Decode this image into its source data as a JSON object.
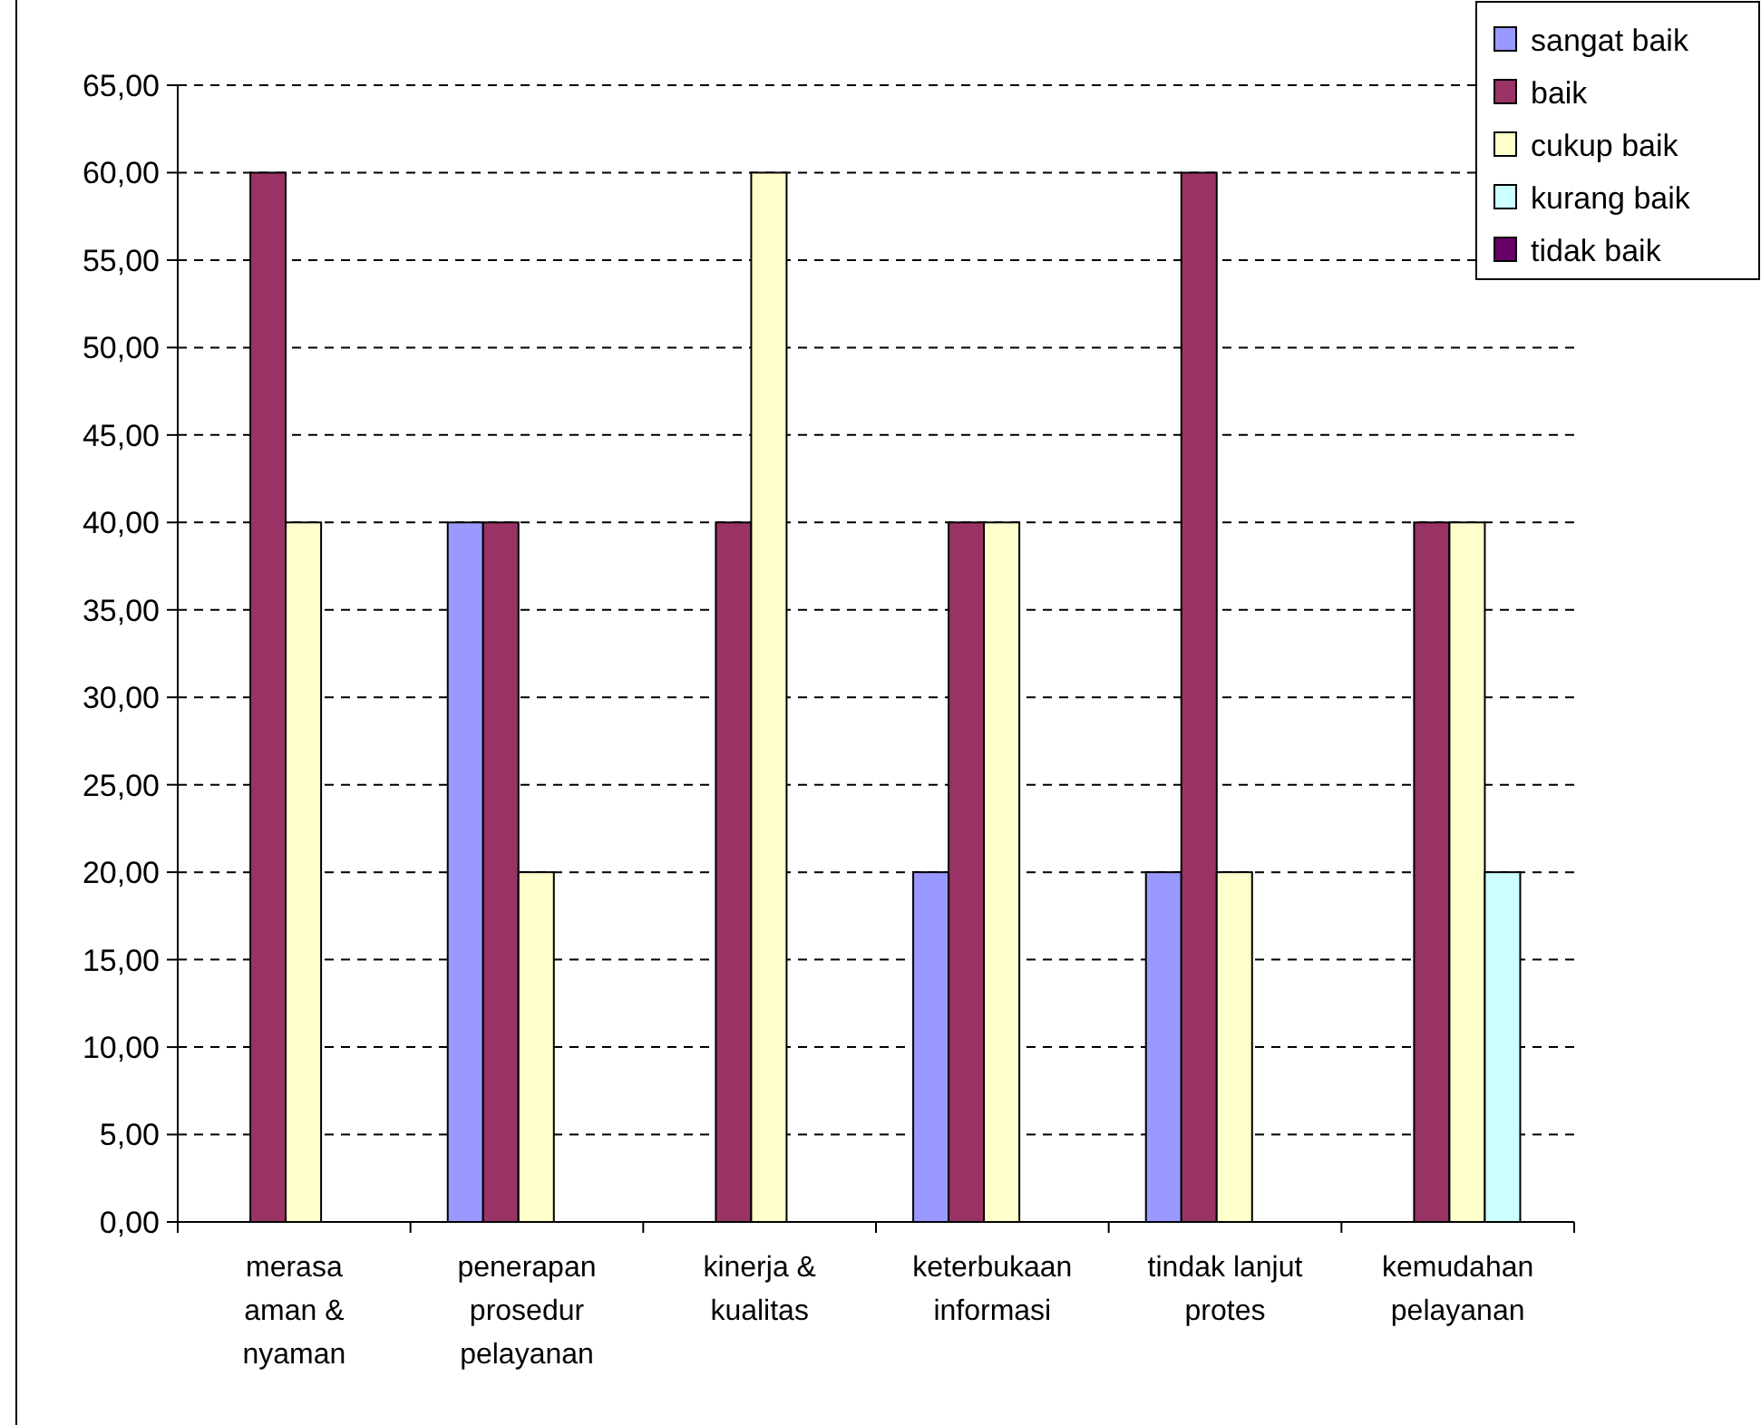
{
  "chart_data": {
    "type": "bar",
    "categories": [
      "merasa\naman &\nnyaman",
      "penerapan\nprosedur\npelayanan",
      "kinerja &\nkualitas",
      "keterbukaan\ninformasi",
      "tindak lanjut\nprotes",
      "kemudahan\npelayanan"
    ],
    "series": [
      {
        "name": "sangat baik",
        "color": "#9999ff",
        "values": [
          0,
          40,
          0,
          20,
          20,
          0
        ]
      },
      {
        "name": "baik",
        "color": "#993366",
        "values": [
          60,
          40,
          40,
          40,
          60,
          40
        ]
      },
      {
        "name": "cukup baik",
        "color": "#ffffcc",
        "values": [
          40,
          20,
          60,
          40,
          20,
          40
        ]
      },
      {
        "name": "kurang baik",
        "color": "#ccffff",
        "values": [
          0,
          0,
          0,
          0,
          0,
          20
        ]
      },
      {
        "name": "tidak baik",
        "color": "#660066",
        "values": [
          0,
          0,
          0,
          0,
          0,
          0
        ]
      }
    ],
    "ylim": [
      0,
      65
    ],
    "yticks": [
      {
        "value": 0,
        "label": "0,00"
      },
      {
        "value": 5,
        "label": "5,00"
      },
      {
        "value": 10,
        "label": "10,00"
      },
      {
        "value": 15,
        "label": "15,00"
      },
      {
        "value": 20,
        "label": "20,00"
      },
      {
        "value": 25,
        "label": "25,00"
      },
      {
        "value": 30,
        "label": "30,00"
      },
      {
        "value": 35,
        "label": "35,00"
      },
      {
        "value": 40,
        "label": "40,00"
      },
      {
        "value": 45,
        "label": "45,00"
      },
      {
        "value": 50,
        "label": "50,00"
      },
      {
        "value": 55,
        "label": "55,00"
      },
      {
        "value": 60,
        "label": "60,00"
      },
      {
        "value": 65,
        "label": "65,00"
      }
    ],
    "grid": "y",
    "legend": "top right"
  }
}
